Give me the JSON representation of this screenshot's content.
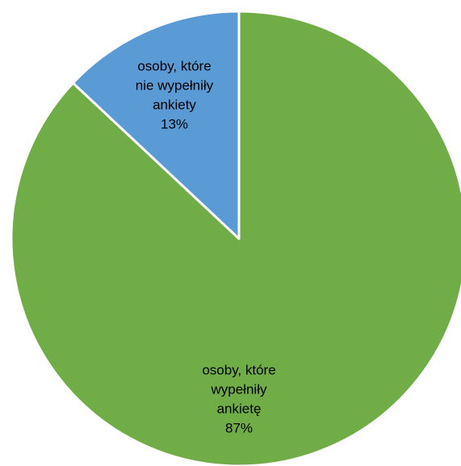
{
  "chart_data": {
    "type": "pie",
    "title": "",
    "legend": "none",
    "slices": [
      {
        "label_lines": [
          "osoby, które",
          "wypełniły",
          "ankietę"
        ],
        "value": 87,
        "value_label": "87%",
        "color": "#70AD47"
      },
      {
        "label_lines": [
          "osoby, które",
          "nie wypełniły",
          "ankiety"
        ],
        "value": 13,
        "value_label": "13%",
        "color": "#5B9BD5"
      }
    ],
    "slice_border_color": "#FFFFFF"
  }
}
